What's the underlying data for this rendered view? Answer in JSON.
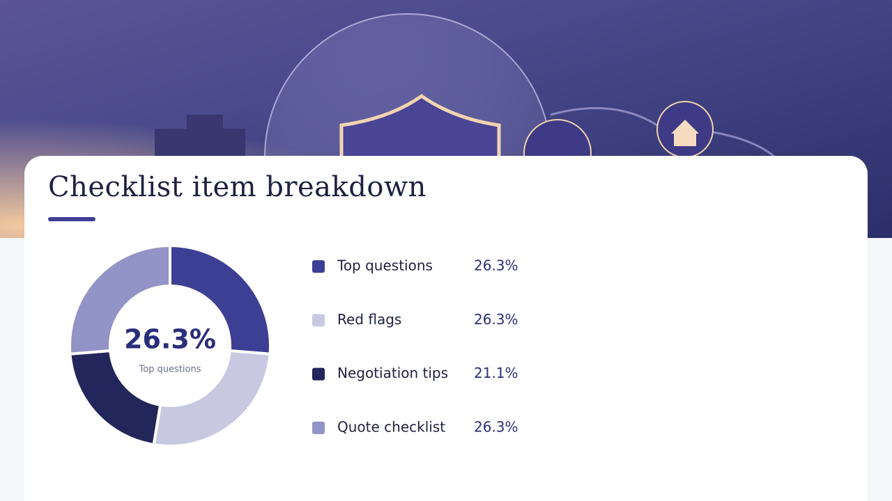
{
  "chart_data": {
    "type": "pie",
    "title": "Checklist item breakdown",
    "categories": [
      "Top questions",
      "Red flags",
      "Negotiation tips",
      "Quote checklist"
    ],
    "values": [
      26.3,
      26.3,
      21.1,
      26.3
    ],
    "value_labels": [
      "26.3%",
      "26.3%",
      "21.1%",
      "26.3%"
    ],
    "colors": [
      "#3d3f94",
      "#c8c9e1",
      "#23265a",
      "#9293c6"
    ]
  }
}
